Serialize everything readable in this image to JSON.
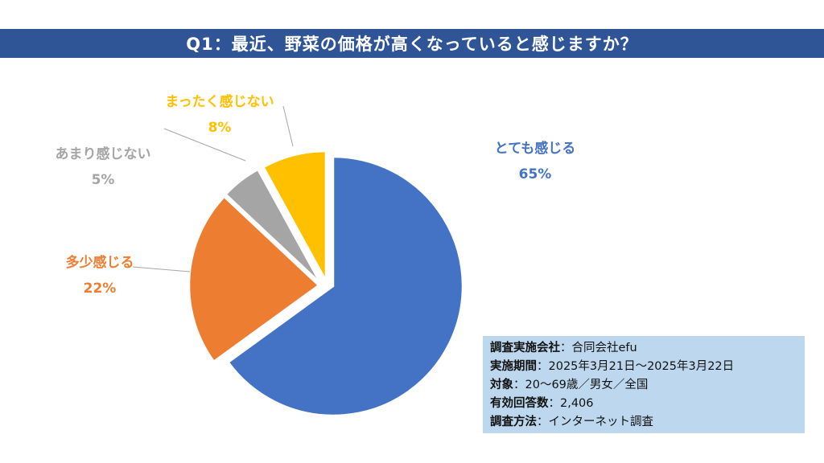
{
  "title": "Q1：最近、野菜の価格が高くなっていると感じますか？",
  "chart_data": {
    "type": "pie",
    "categories": [
      "とても感じる",
      "多少感じる",
      "あまり感じない",
      "まったく感じない"
    ],
    "values": [
      65,
      22,
      5,
      8
    ],
    "value_labels": [
      "65%",
      "22%",
      "5%",
      "8%"
    ],
    "colors": [
      "#4472c4",
      "#ed7d31",
      "#a5a5a5",
      "#ffc000"
    ],
    "exploded": true,
    "start": "12 o'clock, clockwise"
  },
  "survey": [
    {
      "key": "調査実施会社",
      "sep": "：",
      "value": "合同会社efu"
    },
    {
      "key": "実施期間",
      "sep": "：",
      "value": "2025年3月21日～2025年3月22日"
    },
    {
      "key": "対象",
      "sep": "：",
      "value": "20～69歳／男女／全国"
    },
    {
      "key": "有効回答数",
      "sep": "：",
      "value": "2,406"
    },
    {
      "key": "調査方法",
      "sep": "：",
      "value": "インターネット調査"
    }
  ]
}
